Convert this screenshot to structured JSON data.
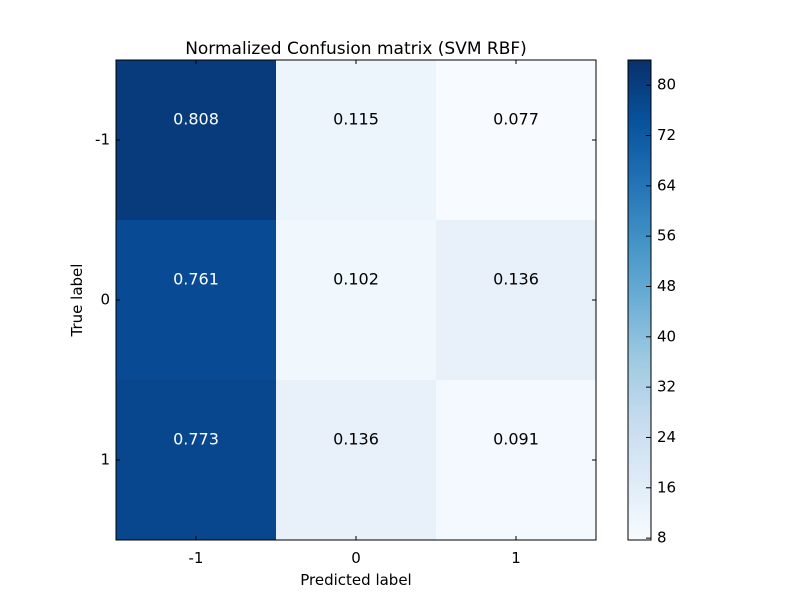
{
  "chart_data": {
    "type": "heatmap",
    "title": "Normalized Confusion matrix (SVM RBF)",
    "xlabel": "Predicted label",
    "ylabel": "True label",
    "x_categories": [
      "-1",
      "0",
      "1"
    ],
    "y_categories": [
      "-1",
      "0",
      "1"
    ],
    "values": [
      [
        0.808,
        0.115,
        0.077
      ],
      [
        0.761,
        0.102,
        0.136
      ],
      [
        0.773,
        0.136,
        0.091
      ]
    ],
    "cell_labels": [
      [
        "0.808",
        "0.115",
        "0.077"
      ],
      [
        "0.761",
        "0.102",
        "0.136"
      ],
      [
        "0.773",
        "0.136",
        "0.091"
      ]
    ],
    "colorbar": {
      "colormap": "Blues",
      "range": [
        7.7,
        84
      ],
      "ticks": [
        "8",
        "16",
        "24",
        "32",
        "40",
        "48",
        "56",
        "64",
        "72",
        "80"
      ]
    },
    "grid": false
  }
}
